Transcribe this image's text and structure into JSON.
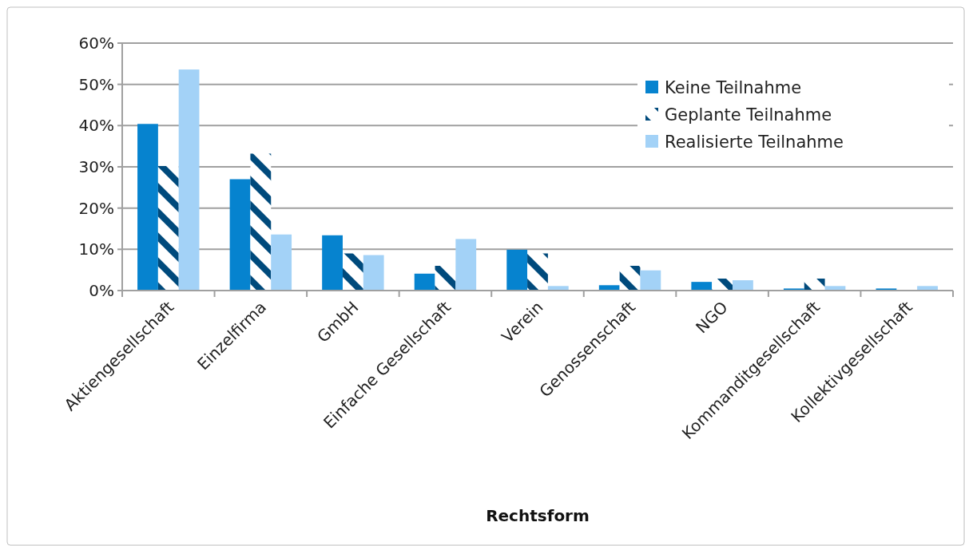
{
  "chart_data": {
    "type": "bar",
    "xlabel": "Rechtsform",
    "categories": [
      "Aktiengesellschaft",
      "Einzelfirma",
      "GmbH",
      "Einfache Gesellschaft",
      "Verein",
      "Genossenschaft",
      "NGO",
      "Kommanditgesellschaft",
      "Kollektivgesellschaft"
    ],
    "series": [
      {
        "name": "Keine Teilnahme",
        "color": "#0683cf",
        "values": [
          40.4,
          27.0,
          13.4,
          4.1,
          9.9,
          1.3,
          2.1,
          0.5,
          0.5
        ]
      },
      {
        "name": "Geplante Teilnahme",
        "color": "#004a7c",
        "values": [
          30.2,
          33.2,
          9.0,
          6.0,
          9.0,
          6.0,
          2.9,
          2.9,
          0
        ]
      },
      {
        "name": "Realisierte Teilnahme",
        "color": "#a3d2f7",
        "values": [
          53.6,
          13.6,
          8.6,
          12.5,
          1.1,
          4.9,
          2.5,
          1.1,
          1.1
        ]
      }
    ],
    "ylim": [
      0,
      60
    ],
    "yticks": [
      {
        "value": 0,
        "label": "0%"
      },
      {
        "value": 10,
        "label": "10%"
      },
      {
        "value": 20,
        "label": "20%"
      },
      {
        "value": 30,
        "label": "30%"
      },
      {
        "value": 40,
        "label": "40%"
      },
      {
        "value": 50,
        "label": "50%"
      },
      {
        "value": 60,
        "label": "60%"
      }
    ],
    "grid": "y",
    "legend": "top right"
  }
}
